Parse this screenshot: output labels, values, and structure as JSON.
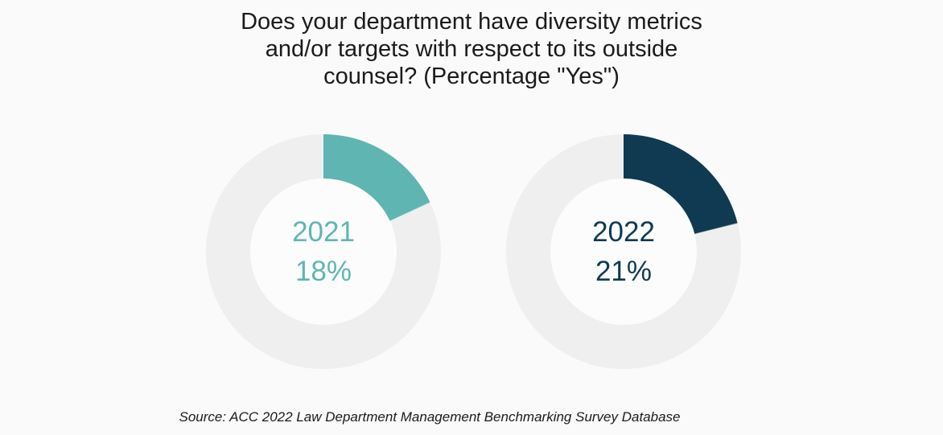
{
  "title": {
    "full": "Does your department have diversity metrics and/or targets with respect to its outside counsel? (Percentage \"Yes\")",
    "lines": [
      "Does your department have diversity metrics",
      "and/or targets with respect to its outside",
      "counsel? (Percentage \"Yes\")"
    ]
  },
  "source": "Source: ACC 2022 Law Department Management Benchmarking Survey Database",
  "colors": {
    "accent_2021": "#5fb5b1",
    "accent_2022": "#0f3a52",
    "donut_track": "#efefef",
    "background": "#fafafa",
    "donut_hole": "#fcfcfc",
    "text": "#1a1a1a"
  },
  "chart_data": [
    {
      "type": "pie",
      "subtype": "donut",
      "name": "2021",
      "slices": [
        {
          "label": "Yes",
          "value": 18
        },
        {
          "label": "Remainder",
          "value": 82
        }
      ],
      "center_label": {
        "year": "2021",
        "percent": "18%"
      },
      "color": "#5fb5b1",
      "track_color": "#efefef",
      "start_angle_deg": 0,
      "direction": "clockwise",
      "legend": "none"
    },
    {
      "type": "pie",
      "subtype": "donut",
      "name": "2022",
      "slices": [
        {
          "label": "Yes",
          "value": 21
        },
        {
          "label": "Remainder",
          "value": 79
        }
      ],
      "center_label": {
        "year": "2022",
        "percent": "21%"
      },
      "color": "#0f3a52",
      "track_color": "#efefef",
      "start_angle_deg": 0,
      "direction": "clockwise",
      "legend": "none"
    }
  ]
}
